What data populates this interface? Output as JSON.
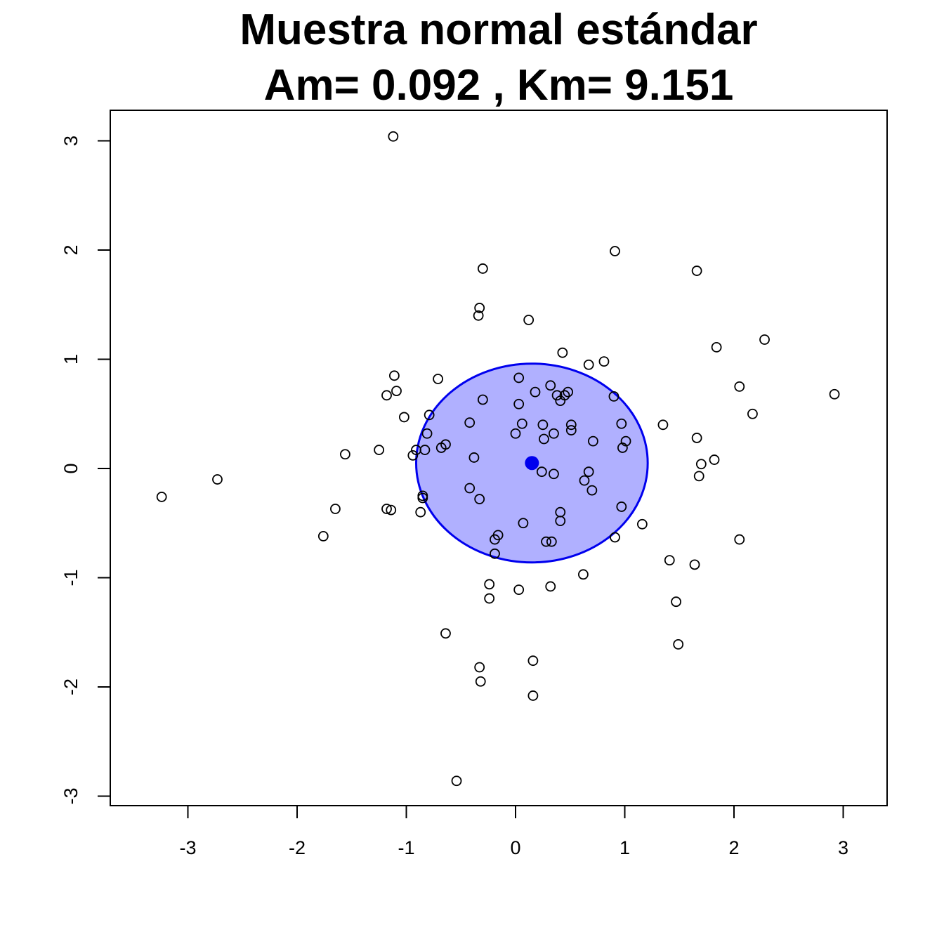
{
  "chart_data": {
    "type": "scatter",
    "title": "Muestra normal estándar",
    "subtitle": "Am= 0.092 , Km= 9.151",
    "xlabel": "",
    "ylabel": "",
    "xlim": [
      -3.7,
      3.4
    ],
    "ylim": [
      -3.1,
      3.28
    ],
    "x_ticks": [
      -3,
      -2,
      -1,
      0,
      1,
      2,
      3
    ],
    "y_ticks": [
      -3,
      -2,
      -1,
      0,
      1,
      2,
      3
    ],
    "x_tick_labels": [
      "-3",
      "-2",
      "-1",
      "0",
      "1",
      "2",
      "3"
    ],
    "y_tick_labels": [
      "-3",
      "-2",
      "-1",
      "0",
      "1",
      "2",
      "3"
    ],
    "grid": false,
    "point_color": "#000000",
    "region_fill": "#b0b0ff",
    "region_stroke": "#0000ee",
    "center": {
      "x": 0.15,
      "y": 0.05,
      "color": "#0000ee"
    },
    "ellipse": {
      "cx": 0.15,
      "cy": 0.05,
      "rx": 1.06,
      "ry": 0.91
    },
    "points": [
      [
        -1.12,
        3.04
      ],
      [
        0.91,
        1.99
      ],
      [
        -0.3,
        1.83
      ],
      [
        1.66,
        1.81
      ],
      [
        -0.33,
        1.47
      ],
      [
        -0.34,
        1.4
      ],
      [
        0.12,
        1.36
      ],
      [
        2.28,
        1.18
      ],
      [
        1.84,
        1.11
      ],
      [
        0.43,
        1.06
      ],
      [
        0.67,
        0.95
      ],
      [
        0.81,
        0.98
      ],
      [
        -1.11,
        0.85
      ],
      [
        -0.71,
        0.82
      ],
      [
        0.03,
        0.83
      ],
      [
        2.05,
        0.75
      ],
      [
        0.32,
        0.76
      ],
      [
        -1.09,
        0.71
      ],
      [
        0.18,
        0.7
      ],
      [
        0.48,
        0.7
      ],
      [
        -1.18,
        0.67
      ],
      [
        2.92,
        0.68
      ],
      [
        0.38,
        0.67
      ],
      [
        0.45,
        0.67
      ],
      [
        0.9,
        0.66
      ],
      [
        -0.3,
        0.63
      ],
      [
        0.41,
        0.62
      ],
      [
        0.03,
        0.59
      ],
      [
        2.17,
        0.5
      ],
      [
        -0.79,
        0.49
      ],
      [
        -1.02,
        0.47
      ],
      [
        -0.42,
        0.42
      ],
      [
        0.06,
        0.41
      ],
      [
        0.25,
        0.4
      ],
      [
        0.51,
        0.4
      ],
      [
        0.97,
        0.41
      ],
      [
        1.35,
        0.4
      ],
      [
        -0.81,
        0.32
      ],
      [
        0.0,
        0.32
      ],
      [
        0.35,
        0.32
      ],
      [
        0.51,
        0.35
      ],
      [
        1.66,
        0.28
      ],
      [
        0.26,
        0.27
      ],
      [
        0.71,
        0.25
      ],
      [
        1.01,
        0.25
      ],
      [
        -0.64,
        0.22
      ],
      [
        -0.68,
        0.19
      ],
      [
        -1.25,
        0.17
      ],
      [
        -0.91,
        0.17
      ],
      [
        -0.83,
        0.17
      ],
      [
        0.98,
        0.19
      ],
      [
        -1.56,
        0.13
      ],
      [
        -0.94,
        0.12
      ],
      [
        -0.38,
        0.1
      ],
      [
        1.82,
        0.08
      ],
      [
        1.7,
        0.04
      ],
      [
        0.24,
        -0.03
      ],
      [
        0.67,
        -0.03
      ],
      [
        0.35,
        -0.05
      ],
      [
        1.68,
        -0.07
      ],
      [
        -2.73,
        -0.1
      ],
      [
        0.63,
        -0.11
      ],
      [
        -0.42,
        -0.18
      ],
      [
        0.7,
        -0.2
      ],
      [
        -3.24,
        -0.26
      ],
      [
        -0.85,
        -0.25
      ],
      [
        -0.85,
        -0.27
      ],
      [
        -0.33,
        -0.28
      ],
      [
        0.97,
        -0.35
      ],
      [
        -1.65,
        -0.37
      ],
      [
        -1.18,
        -0.37
      ],
      [
        -1.14,
        -0.38
      ],
      [
        -0.87,
        -0.4
      ],
      [
        0.41,
        -0.4
      ],
      [
        0.41,
        -0.48
      ],
      [
        0.07,
        -0.5
      ],
      [
        1.16,
        -0.51
      ],
      [
        -1.76,
        -0.62
      ],
      [
        0.91,
        -0.63
      ],
      [
        -0.16,
        -0.61
      ],
      [
        -0.19,
        -0.65
      ],
      [
        2.05,
        -0.65
      ],
      [
        0.28,
        -0.67
      ],
      [
        0.33,
        -0.67
      ],
      [
        -0.19,
        -0.78
      ],
      [
        1.41,
        -0.84
      ],
      [
        1.64,
        -0.88
      ],
      [
        0.62,
        -0.97
      ],
      [
        -0.24,
        -1.06
      ],
      [
        0.32,
        -1.08
      ],
      [
        0.03,
        -1.11
      ],
      [
        -0.24,
        -1.19
      ],
      [
        1.47,
        -1.22
      ],
      [
        1.49,
        -1.61
      ],
      [
        -0.64,
        -1.51
      ],
      [
        0.16,
        -1.76
      ],
      [
        -0.33,
        -1.82
      ],
      [
        -0.32,
        -1.95
      ],
      [
        0.16,
        -2.08
      ],
      [
        -0.54,
        -2.86
      ]
    ]
  }
}
